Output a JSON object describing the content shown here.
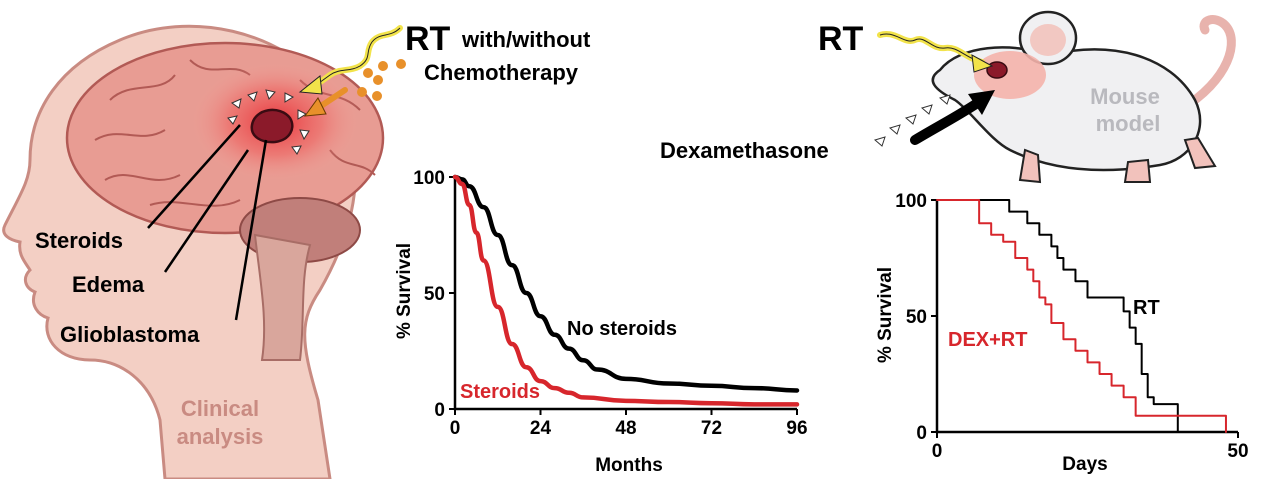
{
  "clinical": {
    "rt_label": "RT",
    "rt_suffix": "with/without",
    "chemo_label": "Chemotherapy",
    "steroids_label": "Steroids",
    "edema_label": "Edema",
    "gbm_label": "Glioblastoma",
    "analysis_line1": "Clinical",
    "analysis_line2": "analysis"
  },
  "mouse": {
    "rt_label": "RT",
    "dex_label": "Dexamethasone",
    "model_line1": "Mouse",
    "model_line2": "model"
  },
  "colors": {
    "black_series": "#000000",
    "red_series": "#d7262c",
    "skin": "#f3cfc4",
    "brain": "#e89c93",
    "tumor": "#8b1a2a"
  },
  "chart_data": [
    {
      "type": "line",
      "title": "",
      "xlabel": "Months",
      "ylabel": "% Survival",
      "xlim": [
        0,
        96
      ],
      "ylim": [
        0,
        100
      ],
      "xticks": [
        "0",
        "24",
        "48",
        "72",
        "96"
      ],
      "yticks": [
        "0",
        "50",
        "100"
      ],
      "series": [
        {
          "name": "No steroids",
          "color": "#000000",
          "x": [
            0,
            2,
            4,
            8,
            12,
            16,
            20,
            24,
            28,
            32,
            36,
            40,
            48,
            60,
            72,
            84,
            96
          ],
          "y": [
            100,
            99,
            96,
            87,
            75,
            62,
            50,
            40,
            32,
            26,
            21,
            17,
            13,
            11,
            10,
            9,
            8
          ]
        },
        {
          "name": "Steroids",
          "color": "#d7262c",
          "x": [
            0,
            2,
            4,
            6,
            8,
            12,
            16,
            20,
            24,
            28,
            32,
            36,
            48,
            60,
            72,
            84,
            96
          ],
          "y": [
            100,
            97,
            88,
            76,
            64,
            44,
            28,
            18,
            12,
            9,
            7,
            5,
            3.5,
            3,
            2.5,
            2,
            2
          ]
        }
      ]
    },
    {
      "type": "line",
      "title": "",
      "xlabel": "Days",
      "ylabel": "% Survival",
      "xlim": [
        0,
        50
      ],
      "ylim": [
        0,
        100
      ],
      "xticks": [
        "0",
        "50"
      ],
      "yticks": [
        "0",
        "50",
        "100"
      ],
      "series": [
        {
          "name": "RT",
          "color": "#000000",
          "step": true,
          "x": [
            0,
            6,
            12,
            15,
            17,
            19,
            20,
            21,
            23,
            25,
            27,
            31,
            32,
            33,
            34,
            35,
            36,
            40,
            40
          ],
          "y": [
            100,
            100,
            95,
            90,
            85,
            80,
            75,
            70,
            65,
            58,
            58,
            52,
            45,
            38,
            25,
            15,
            12,
            12,
            0
          ]
        },
        {
          "name": "DEX+RT",
          "color": "#d7262c",
          "step": true,
          "x": [
            0,
            5,
            7,
            9,
            11,
            13,
            15,
            16,
            17,
            18,
            19,
            21,
            23,
            25,
            27,
            29,
            31,
            33,
            36,
            48,
            48
          ],
          "y": [
            100,
            100,
            90,
            85,
            82,
            75,
            70,
            65,
            58,
            55,
            47,
            40,
            35,
            30,
            25,
            20,
            15,
            7,
            7,
            7,
            0
          ]
        }
      ]
    }
  ]
}
